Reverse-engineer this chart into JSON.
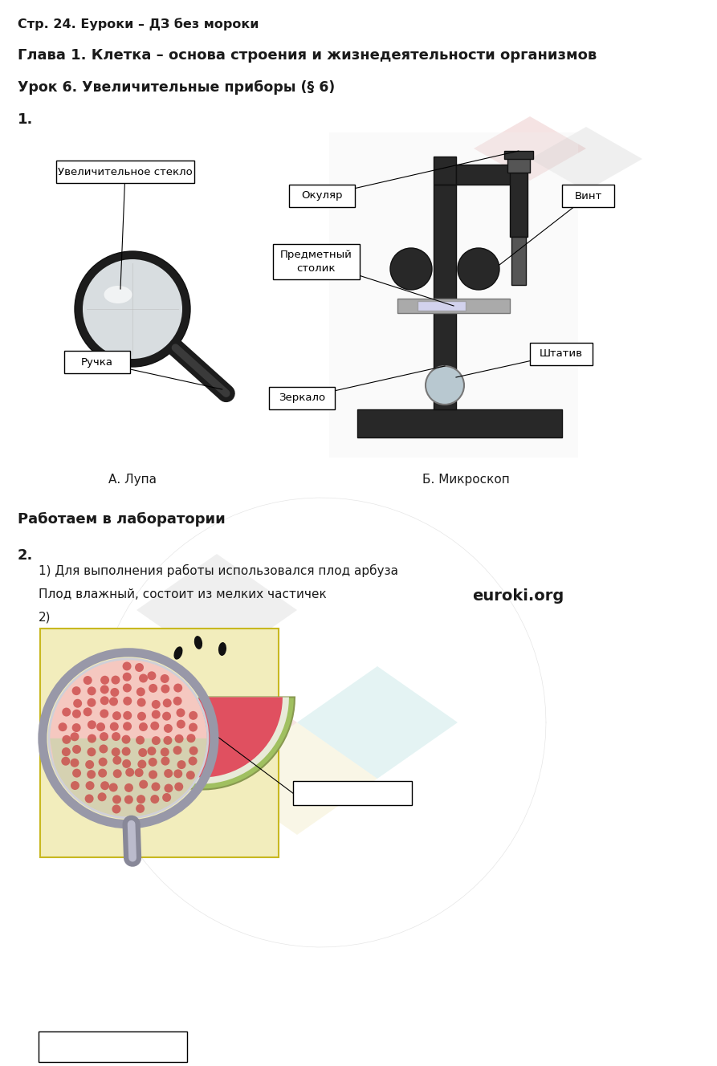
{
  "background_color": "#ffffff",
  "line1": "Стр. 24. Еуроки – ДЗ без мороки",
  "line2": "Глава 1. Клетка – основа строения и жизнедеятельности организмов",
  "line3": "Урок 6. Увеличительные приборы (§ 6)",
  "num1": "1.",
  "label_uv_steklo": "Увеличительное стекло",
  "label_okulyar": "Окуляр",
  "label_vint": "Винт",
  "label_predm_stolik": "Предметный\nстолик",
  "label_shtativ": "Штатив",
  "label_ruchka": "Ручка",
  "label_zerkalo": "Зеркало",
  "caption_a": "А. Лупа",
  "caption_b": "Б. Микроскоп",
  "section_lab": "Работаем в лаборатории",
  "num2": "2.",
  "task1": "1) Для выполнения работы использовался плод арбуза",
  "task1b": "Плод влажный, состоит из мелких частичек",
  "euroki": "euroki.org",
  "task2": "2)"
}
